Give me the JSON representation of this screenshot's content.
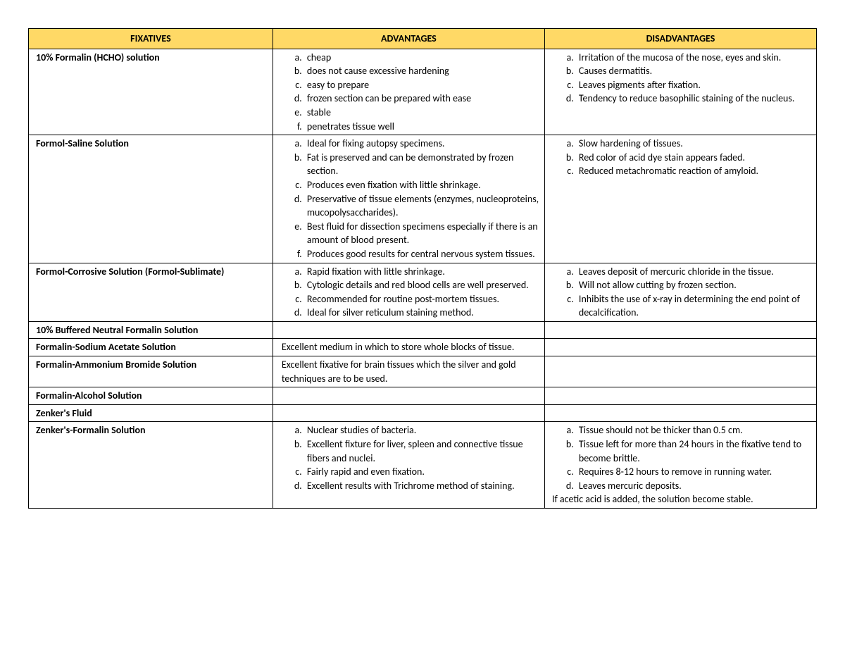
{
  "headers": {
    "fixatives": "FIXATIVES",
    "advantages": "ADVANTAGES",
    "disadvantages": "DISADVANTAGES"
  },
  "rows": [
    {
      "fixative": "10% Formalin (HCHO) solution",
      "adv_type": "list",
      "adv": [
        "cheap",
        "does not cause excessive hardening",
        "easy to prepare",
        "frozen section can be prepared with ease",
        "stable",
        "penetrates tissue well"
      ],
      "dis_type": "list",
      "dis": [
        "Irritation of the mucosa of the nose, eyes and skin.",
        "Causes dermatitis.",
        "Leaves pigments after fixation.",
        "Tendency to reduce basophilic staining of the nucleus."
      ]
    },
    {
      "fixative": "Formol-Saline Solution",
      "adv_type": "list",
      "adv": [
        "Ideal for fixing autopsy specimens.",
        "Fat is preserved and can be demonstrated by frozen section.",
        "Produces even fixation with little shrinkage.",
        "Preservative of tissue elements (enzymes, nucleoproteins, mucopolysaccharides).",
        "Best fluid for dissection specimens especially if there is an amount of blood present.",
        "Produces good results for central nervous system tissues."
      ],
      "dis_type": "list",
      "dis": [
        "Slow hardening of tissues.",
        "Red color of acid dye stain appears faded.",
        "Reduced metachromatic reaction of amyloid."
      ]
    },
    {
      "fixative": "Formol-Corrosive Solution (Formol-Sublimate)",
      "adv_type": "list",
      "adv": [
        "Rapid fixation with little shrinkage.",
        "Cytologic details and red blood cells are well preserved.",
        "Recommended for routine post-mortem tissues.",
        "Ideal for silver reticulum staining method."
      ],
      "dis_type": "list",
      "dis": [
        "Leaves deposit of mercuric chloride in the tissue.",
        "Will not allow cutting by frozen section.",
        "Inhibits the use of x-ray in determining the end point of decalcification."
      ]
    },
    {
      "fixative": "10% Buffered Neutral Formalin Solution",
      "adv_type": "empty",
      "dis_type": "empty"
    },
    {
      "fixative": "Formalin-Sodium Acetate Solution",
      "adv_type": "plain",
      "adv_text": "Excellent medium in which to store whole blocks of tissue.",
      "dis_type": "empty"
    },
    {
      "fixative": "Formalin-Ammonium Bromide Solution",
      "adv_type": "plain",
      "adv_text": "Excellent fixative for brain tissues which the silver and gold techniques are to be used.",
      "dis_type": "empty"
    },
    {
      "fixative": "Formalin-Alcohol Solution",
      "adv_type": "empty",
      "dis_type": "empty"
    },
    {
      "fixative": "Zenker's Fluid",
      "adv_type": "empty",
      "dis_type": "empty"
    },
    {
      "fixative": "Zenker's-Formalin Solution",
      "adv_type": "list",
      "adv": [
        "Nuclear studies of bacteria.",
        "Excellent fixture for liver, spleen and connective tissue fibers and nuclei.",
        "Fairly rapid and even fixation.",
        "Excellent results with Trichrome method of staining."
      ],
      "dis_type": "list",
      "dis": [
        "Tissue should not be thicker than 0.5 cm.",
        "Tissue left for more than 24 hours in the fixative tend to become brittle.",
        "Requires 8-12 hours to remove in running water.",
        "Leaves mercuric deposits."
      ],
      "dis_extra": "If acetic acid is added, the solution become stable."
    }
  ]
}
